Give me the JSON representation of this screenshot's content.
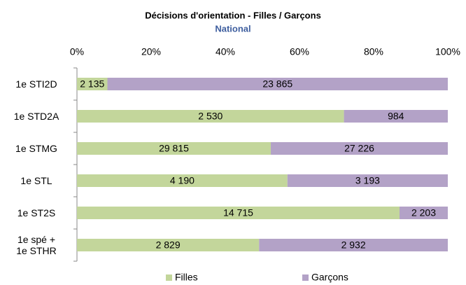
{
  "chart_data": {
    "type": "bar",
    "orientation": "horizontal",
    "stack": "percent",
    "title": "Décisions d'orientation - Filles  / Garçons",
    "subtitle": "National",
    "categories": [
      "1e STI2D",
      "1e STD2A",
      "1e STMG",
      "1e STL",
      "1e ST2S",
      "1e spé +\n1e STHR"
    ],
    "series": [
      {
        "name": "Filles",
        "color": "#c3d69b",
        "values": [
          2135,
          2530,
          29815,
          4190,
          14715,
          2829
        ],
        "value_labels": [
          "2 135",
          "2 530",
          "29 815",
          "4 190",
          "14 715",
          "2 829"
        ]
      },
      {
        "name": "Garçons",
        "color": "#b3a2c7",
        "values": [
          23865,
          984,
          27226,
          3193,
          2203,
          2932
        ],
        "value_labels": [
          "23 865",
          "984",
          "27 226",
          "3 193",
          "2 203",
          "2 932"
        ]
      }
    ],
    "xlim": [
      0,
      100
    ],
    "xticks": [
      {
        "value": 0,
        "label": "0%"
      },
      {
        "value": 20,
        "label": "20%"
      },
      {
        "value": 40,
        "label": "40%"
      },
      {
        "value": 60,
        "label": "60%"
      },
      {
        "value": 80,
        "label": "80%"
      },
      {
        "value": 100,
        "label": "100%"
      }
    ],
    "legend": "bottom",
    "grid": false
  }
}
